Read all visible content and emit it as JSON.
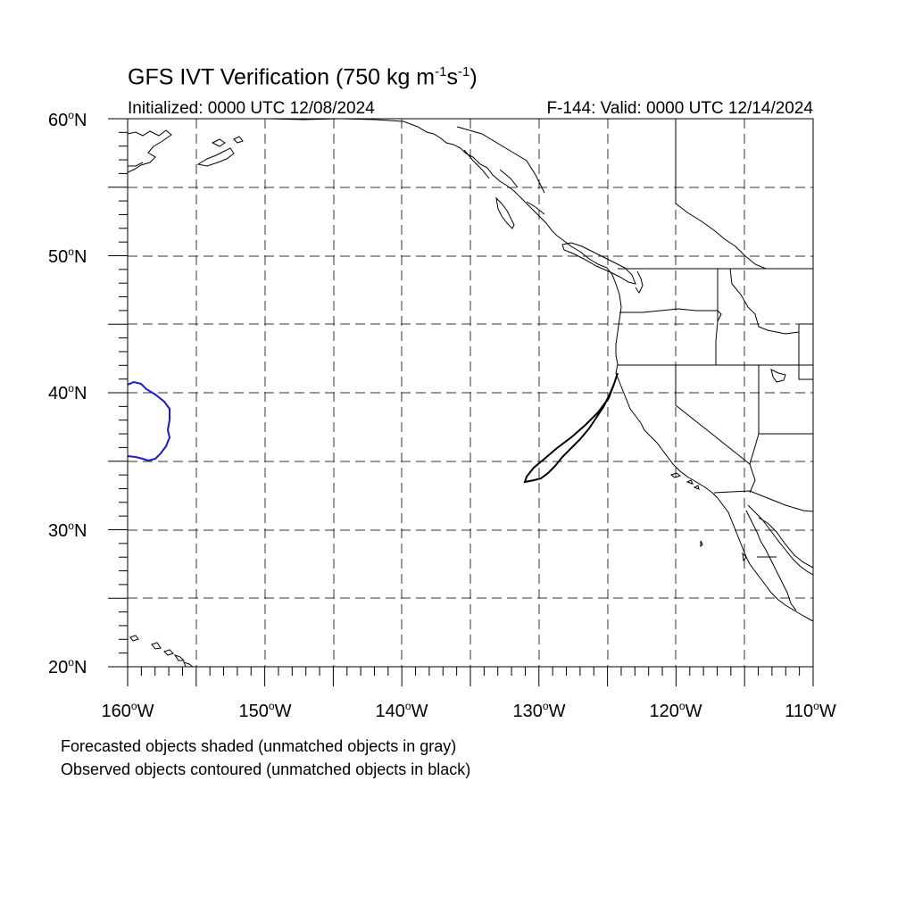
{
  "header": {
    "title_main": "GFS IVT Verification (750 kg m",
    "title_exp1": "-1",
    "title_mid": "s",
    "title_exp2": "-1",
    "title_end": ")",
    "initialized": "Initialized: 0000 UTC 12/08/2024",
    "valid": "F-144: Valid: 0000 UTC 12/14/2024"
  },
  "axes": {
    "lon_range": [
      -160,
      -110
    ],
    "lat_range": [
      20,
      60
    ],
    "grid": "dashed every 5 degrees",
    "y_ticks": [
      {
        "num": "60",
        "hemi": "N"
      },
      {
        "num": "50",
        "hemi": "N"
      },
      {
        "num": "40",
        "hemi": "N"
      },
      {
        "num": "30",
        "hemi": "N"
      },
      {
        "num": "20",
        "hemi": "N"
      }
    ],
    "x_ticks": [
      {
        "num": "160",
        "hemi": "W"
      },
      {
        "num": "150",
        "hemi": "W"
      },
      {
        "num": "140",
        "hemi": "W"
      },
      {
        "num": "130",
        "hemi": "W"
      },
      {
        "num": "120",
        "hemi": "W"
      },
      {
        "num": "110",
        "hemi": "W"
      }
    ]
  },
  "objects": {
    "observed_unmatched": {
      "color": "#000000"
    },
    "observed_matched": {
      "color": "#1a1ad6"
    }
  },
  "notes": {
    "line1": "Forecasted objects shaded (unmatched objects in gray)",
    "line2": "Observed objects contoured (unmatched objects in black)"
  }
}
